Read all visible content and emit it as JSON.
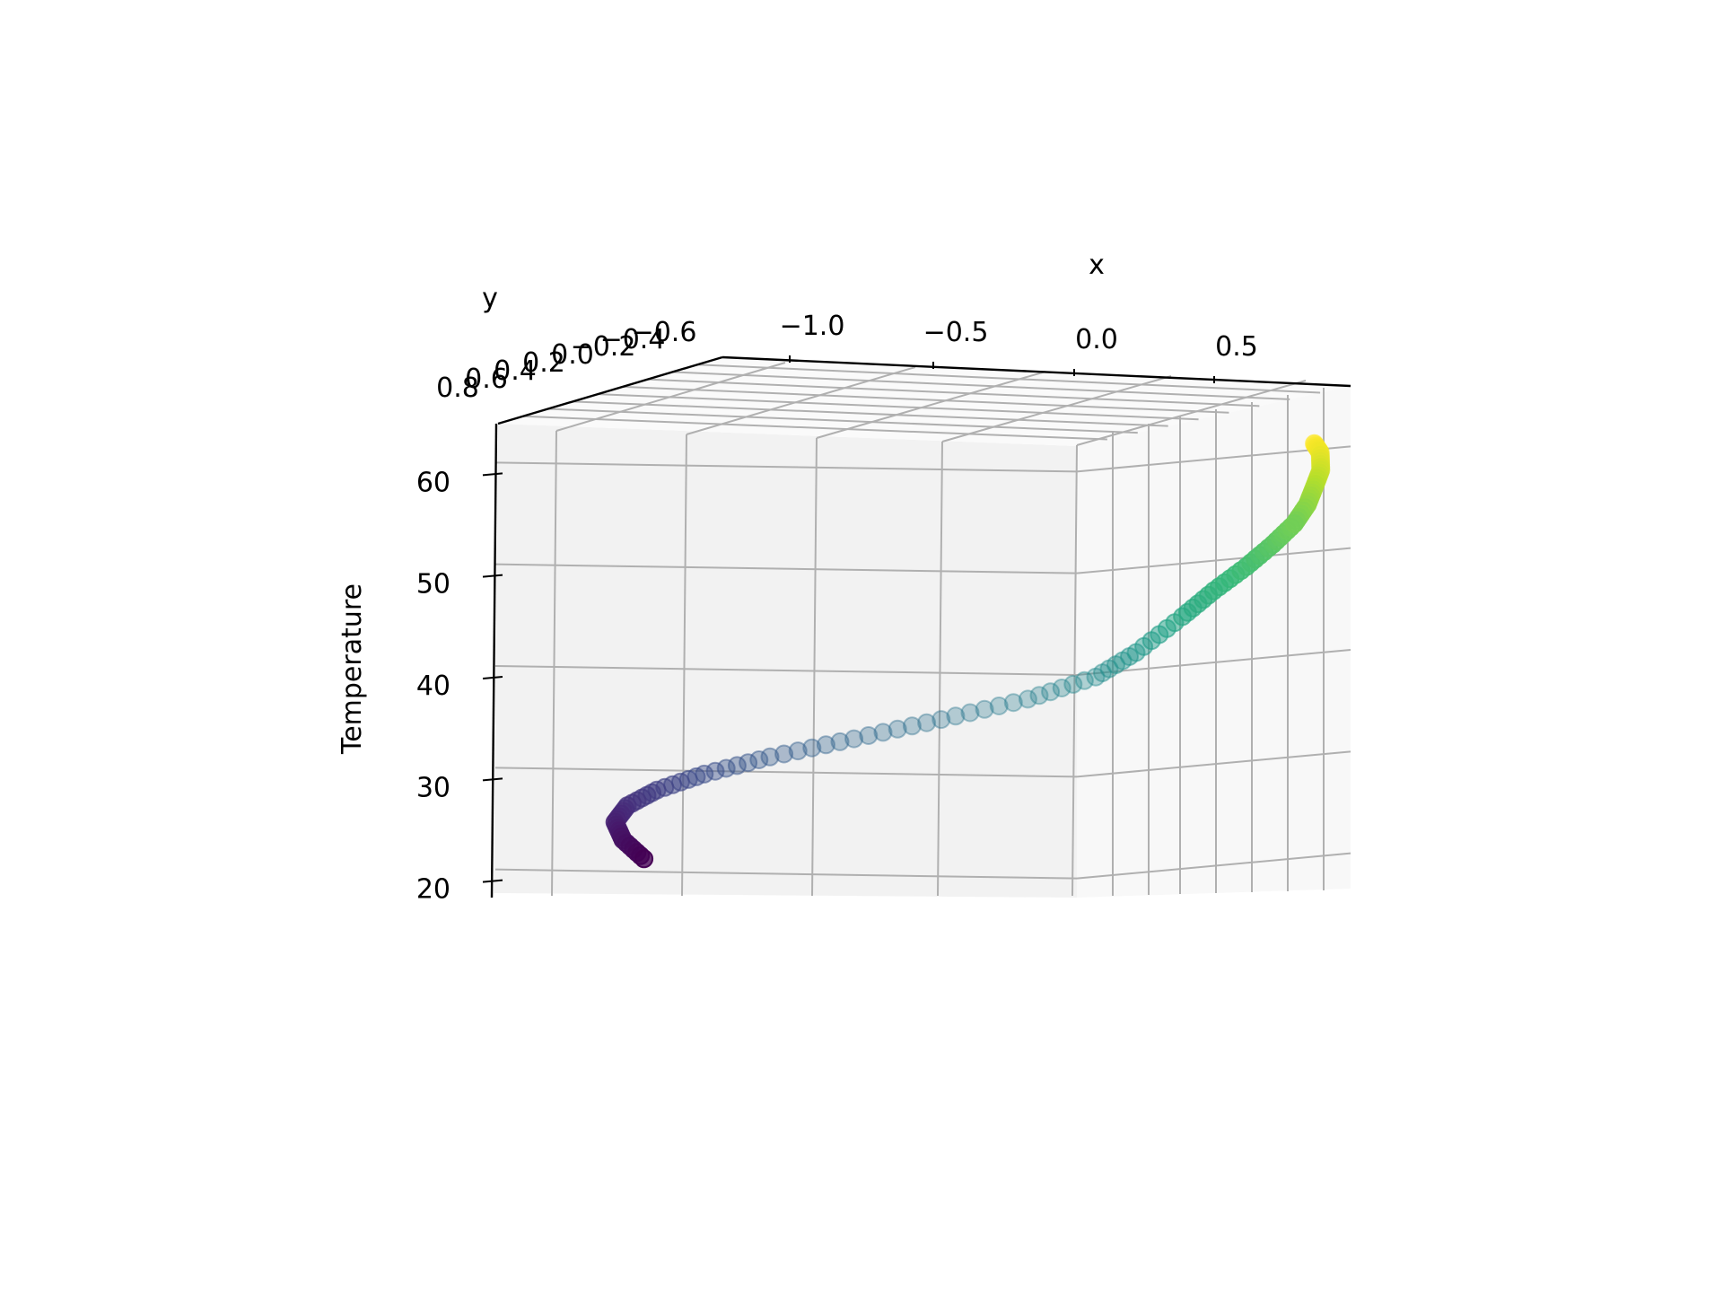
{
  "chart_data": {
    "type": "scatter",
    "projection": "3d",
    "title": "",
    "xlabel": "x",
    "ylabel": "y",
    "zlabel": "Temperature",
    "x_ticks": [
      "−1.0",
      "−0.5",
      "0.0",
      "0.5"
    ],
    "y_ticks": [
      "−0.6",
      "−0.4",
      "−0.2",
      "0.0",
      "0.2",
      "0.4",
      "0.6",
      "0.8"
    ],
    "z_ticks": [
      "20",
      "30",
      "40",
      "50",
      "60"
    ],
    "xlim": [
      -1.35,
      0.95
    ],
    "ylim": [
      -0.75,
      0.85
    ],
    "zlim": [
      19,
      64
    ],
    "colormap": "viridis",
    "grid": true,
    "pane_color": "#f2f2f2",
    "series": [
      {
        "description": "helix points, colored by Temperature",
        "points": [
          {
            "x": -1.02,
            "y": 0.35,
            "z": 21.0
          },
          {
            "x": -1.09,
            "y": 0.3,
            "z": 23.0
          },
          {
            "x": -1.14,
            "y": 0.2,
            "z": 25.0
          },
          {
            "x": -1.15,
            "y": 0.05,
            "z": 27.0
          },
          {
            "x": -1.12,
            "y": -0.12,
            "z": 29.0
          },
          {
            "x": -1.04,
            "y": -0.28,
            "z": 31.0
          },
          {
            "x": -0.9,
            "y": -0.4,
            "z": 33.0
          },
          {
            "x": -0.7,
            "y": -0.48,
            "z": 35.0
          },
          {
            "x": -0.48,
            "y": -0.52,
            "z": 37.0
          },
          {
            "x": -0.25,
            "y": -0.52,
            "z": 39.0
          },
          {
            "x": -0.05,
            "y": -0.45,
            "z": 41.0
          },
          {
            "x": 0.1,
            "y": -0.3,
            "z": 43.0
          },
          {
            "x": 0.28,
            "y": -0.1,
            "z": 46.0
          },
          {
            "x": 0.42,
            "y": 0.1,
            "z": 48.0
          },
          {
            "x": 0.55,
            "y": 0.25,
            "z": 50.0
          },
          {
            "x": 0.64,
            "y": 0.32,
            "z": 52.0
          },
          {
            "x": 0.7,
            "y": 0.33,
            "z": 54.0
          },
          {
            "x": 0.72,
            "y": 0.28,
            "z": 56.0
          },
          {
            "x": 0.71,
            "y": 0.18,
            "z": 58.0
          },
          {
            "x": 0.69,
            "y": 0.05,
            "z": 60.0
          },
          {
            "x": 0.66,
            "y": -0.05,
            "z": 62.0
          },
          {
            "x": 0.63,
            "y": -0.1,
            "z": 63.0
          }
        ]
      }
    ]
  }
}
